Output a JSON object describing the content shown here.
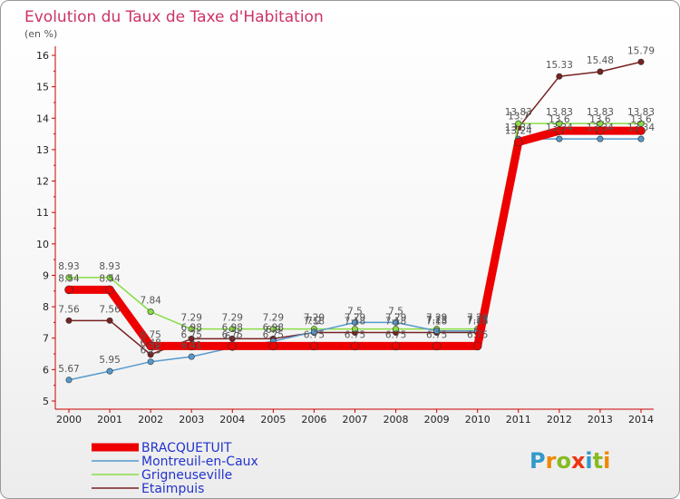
{
  "chart_data": {
    "type": "line",
    "title": "Evolution du Taux de Taxe d'Habitation",
    "unit_label": "(en %)",
    "x": [
      "2000",
      "2001",
      "2002",
      "2003",
      "2004",
      "2005",
      "2006",
      "2007",
      "2008",
      "2009",
      "2010",
      "2011",
      "2012",
      "2013",
      "2014"
    ],
    "ylim": [
      5,
      16
    ],
    "yticks": [
      5,
      6,
      7,
      8,
      9,
      10,
      11,
      12,
      13,
      14,
      15,
      16
    ],
    "grid": false,
    "legend_position": "bottom-left",
    "series": [
      {
        "name": "BRACQUETUIT",
        "color": "#ee0000",
        "values": [
          8.54,
          8.54,
          6.75,
          6.75,
          6.75,
          6.75,
          6.75,
          6.75,
          6.75,
          6.75,
          6.75,
          13.24,
          13.6,
          13.6,
          13.6
        ],
        "labels": [
          "8.54",
          "8.54",
          "6.75",
          "6.75",
          "6.75",
          "6.75",
          "6.75",
          "6.75",
          "6.75",
          "6.75",
          "6.75",
          "13.24",
          "13.6",
          "13.6",
          "13.6"
        ]
      },
      {
        "name": "Montreuil-en-Caux",
        "color": "#5599cc",
        "values": [
          5.67,
          5.95,
          6.25,
          6.41,
          6.7,
          6.9,
          7.2,
          7.5,
          7.5,
          7.23,
          7.23,
          13.34,
          13.34,
          13.34,
          13.34
        ],
        "labels": [
          "5.67",
          "5.95",
          "6.25",
          "6.41",
          "6.7",
          "6.9",
          "7.2",
          "7.5",
          "7.5",
          "7.23",
          "7.23",
          "13.34",
          "13.34",
          "13.34",
          "13.34"
        ]
      },
      {
        "name": "Grigneuseville",
        "color": "#88dd44",
        "values": [
          8.93,
          8.93,
          7.84,
          7.29,
          7.29,
          7.29,
          7.29,
          7.29,
          7.29,
          7.29,
          7.29,
          13.83,
          13.83,
          13.83,
          13.83
        ],
        "labels": [
          "8.93",
          "8.93",
          "7.84",
          "7.29",
          "7.29",
          "7.29",
          "7.29",
          "7.29",
          "7.29",
          "7.29",
          "7.29",
          "13.83",
          "13.83",
          "13.83",
          "13.83"
        ]
      },
      {
        "name": "Etaimpuis",
        "color": "#772222",
        "values": [
          7.56,
          7.56,
          6.48,
          6.98,
          6.98,
          6.98,
          7.18,
          7.18,
          7.18,
          7.18,
          7.18,
          13.7,
          15.33,
          15.48,
          15.79
        ],
        "labels": [
          "7.56",
          "7.56",
          "6.48",
          "6.98",
          "6.98",
          "6.98",
          "7.18",
          "7.18",
          "7.18",
          "7.18",
          "7.18",
          "13.7",
          "15.33",
          "15.48",
          "15.79"
        ]
      }
    ]
  },
  "brand": {
    "letters": [
      "P",
      "r",
      "o",
      "x",
      "i",
      "t",
      "i"
    ],
    "colors": [
      "#3399cc",
      "#ee8800",
      "#88bb22",
      "#ee3311",
      "#3399cc",
      "#88bb22",
      "#ee8800"
    ]
  }
}
